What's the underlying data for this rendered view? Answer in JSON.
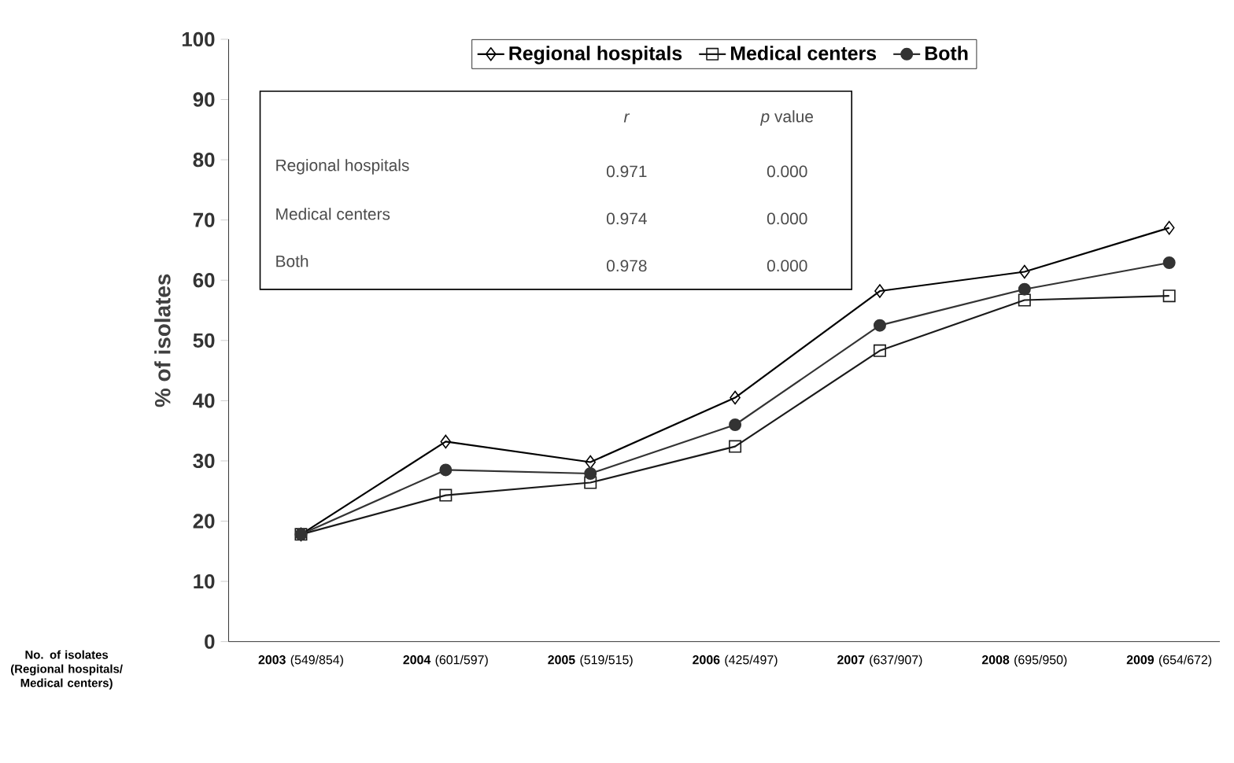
{
  "chart_data": {
    "type": "line",
    "ylabel": "% of isolates",
    "categories": [
      "**2003** (549/854)",
      "**2004** (601/597)",
      "**2005** (519/515)",
      "**2006** (425/497)",
      "**2007** (637/907)",
      "**2008** (695/950)",
      "**2009** (654/672)"
    ],
    "series": [
      {
        "name": "Regional hospitals",
        "color": "#000000",
        "marker": "diamond",
        "values": [
          17.8,
          33.2,
          29.8,
          40.5,
          58.2,
          61.4,
          68.7
        ]
      },
      {
        "name": "Medical centers",
        "color": "#1a1a1a",
        "marker": "square",
        "values": [
          17.8,
          24.3,
          26.4,
          32.4,
          48.3,
          56.7,
          57.4
        ]
      },
      {
        "name": "Both",
        "color": "#333333",
        "marker": "circle",
        "values": [
          17.8,
          28.5,
          27.9,
          36,
          52.5,
          58.5,
          62.9
        ]
      }
    ],
    "ylim": [
      0,
      100
    ],
    "yticks": [
      0,
      10,
      20,
      30,
      40,
      50,
      60,
      70,
      80,
      90,
      100
    ],
    "legend": "top",
    "grid": false,
    "line_style": "solid",
    "annotations": [
      "No. of isolates (Regional hospitals/ Medical centers)",
      "*r*",
      "*p* value",
      "Regional hospitals",
      "0.971",
      "0.000",
      "Medical centers",
      "0.974",
      "0.000",
      "Both",
      "0.978",
      "0.000"
    ]
  }
}
